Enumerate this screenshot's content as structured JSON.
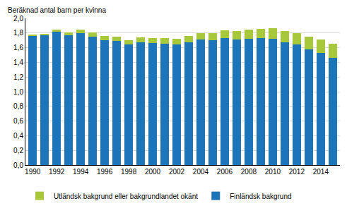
{
  "chart_data": {
    "type": "bar",
    "title": "Beräknad antal barn per kvinna",
    "stacked": true,
    "categories": [
      "1990",
      null,
      "1992",
      null,
      "1994",
      null,
      "1996",
      null,
      "1998",
      null,
      "2000",
      null,
      "2002",
      null,
      "2004",
      null,
      "2006",
      null,
      "2008",
      null,
      "2010",
      null,
      "2012",
      null,
      "2014",
      null
    ],
    "series": [
      {
        "name": "Finländsk bakgrund",
        "color": "#1b75b8",
        "values": [
          1.76,
          1.77,
          1.82,
          1.77,
          1.8,
          1.75,
          1.7,
          1.69,
          1.64,
          1.67,
          1.66,
          1.65,
          1.64,
          1.67,
          1.71,
          1.7,
          1.73,
          1.71,
          1.72,
          1.73,
          1.72,
          1.67,
          1.64,
          1.58,
          1.53,
          1.46
        ]
      },
      {
        "name": "Utländsk bakgrund eller bakgrundlandet okänt",
        "color": "#a8c83c",
        "values": [
          0.02,
          0.02,
          0.03,
          0.04,
          0.05,
          0.06,
          0.06,
          0.06,
          0.06,
          0.07,
          0.07,
          0.08,
          0.08,
          0.09,
          0.09,
          0.1,
          0.11,
          0.12,
          0.13,
          0.13,
          0.15,
          0.16,
          0.16,
          0.17,
          0.18,
          0.19
        ]
      }
    ],
    "ylim": [
      0,
      2
    ],
    "yticks": [
      {
        "value": 0,
        "label": "0,0"
      },
      {
        "value": 0.2,
        "label": "0,2"
      },
      {
        "value": 0.4,
        "label": "0,4"
      },
      {
        "value": 0.6,
        "label": "0,6"
      },
      {
        "value": 0.8,
        "label": "0,8"
      },
      {
        "value": 1,
        "label": "1,0"
      },
      {
        "value": 1.2,
        "label": "1,2"
      },
      {
        "value": 1.4,
        "label": "1,4"
      },
      {
        "value": 1.6,
        "label": "1,6"
      },
      {
        "value": 1.8,
        "label": "1,8"
      },
      {
        "value": 2,
        "label": "2,0"
      }
    ],
    "grid": true,
    "legend": "bottom"
  }
}
